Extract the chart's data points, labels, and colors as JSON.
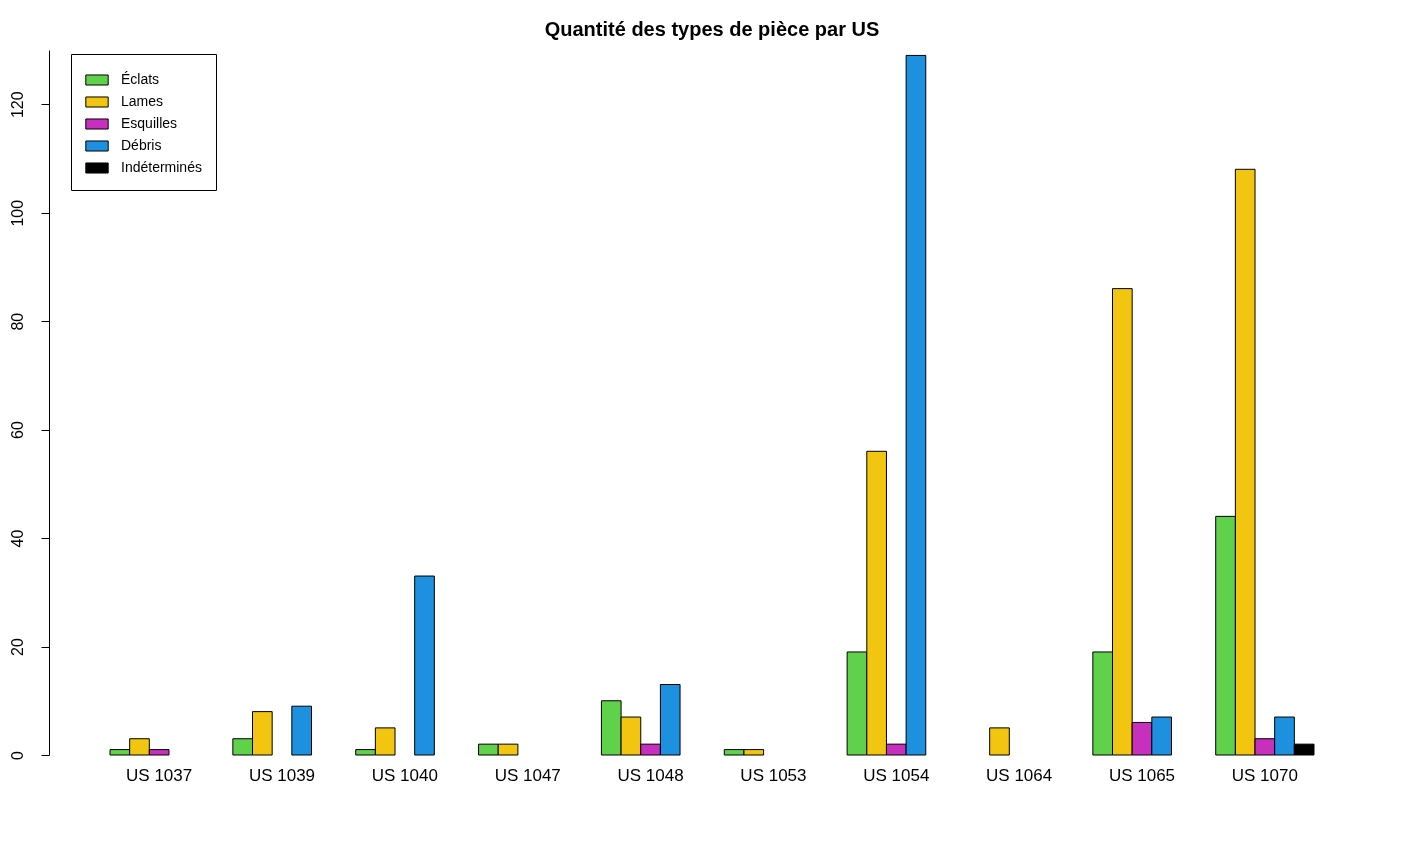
{
  "chart_data": {
    "type": "bar",
    "title": "Quantité des types de pièce par US",
    "categories": [
      "US 1037",
      "US 1039",
      "US 1040",
      "US 1047",
      "US 1048",
      "US 1053",
      "US 1054",
      "US 1064",
      "US 1065",
      "US 1070"
    ],
    "series": [
      {
        "name": "Éclats",
        "color": "#5fd14b",
        "values": [
          1,
          3,
          1,
          2,
          10,
          1,
          19,
          0,
          19,
          44
        ]
      },
      {
        "name": "Lames",
        "color": "#f2c511",
        "values": [
          3,
          8,
          5,
          2,
          7,
          1,
          56,
          5,
          86,
          108
        ]
      },
      {
        "name": "Esquilles",
        "color": "#c72fbd",
        "values": [
          1,
          0,
          0,
          0,
          2,
          0,
          2,
          0,
          6,
          3
        ]
      },
      {
        "name": "Débris",
        "color": "#1e90e0",
        "values": [
          0,
          9,
          33,
          0,
          13,
          0,
          129,
          0,
          7,
          7
        ]
      },
      {
        "name": "Indéterminés",
        "color": "#000000",
        "values": [
          0,
          0,
          0,
          0,
          0,
          0,
          0,
          0,
          0,
          2
        ]
      }
    ],
    "ylim": [
      0,
      130
    ],
    "yticks": [
      0,
      20,
      40,
      60,
      80,
      100,
      120
    ],
    "grid": false,
    "legend": "top left"
  }
}
